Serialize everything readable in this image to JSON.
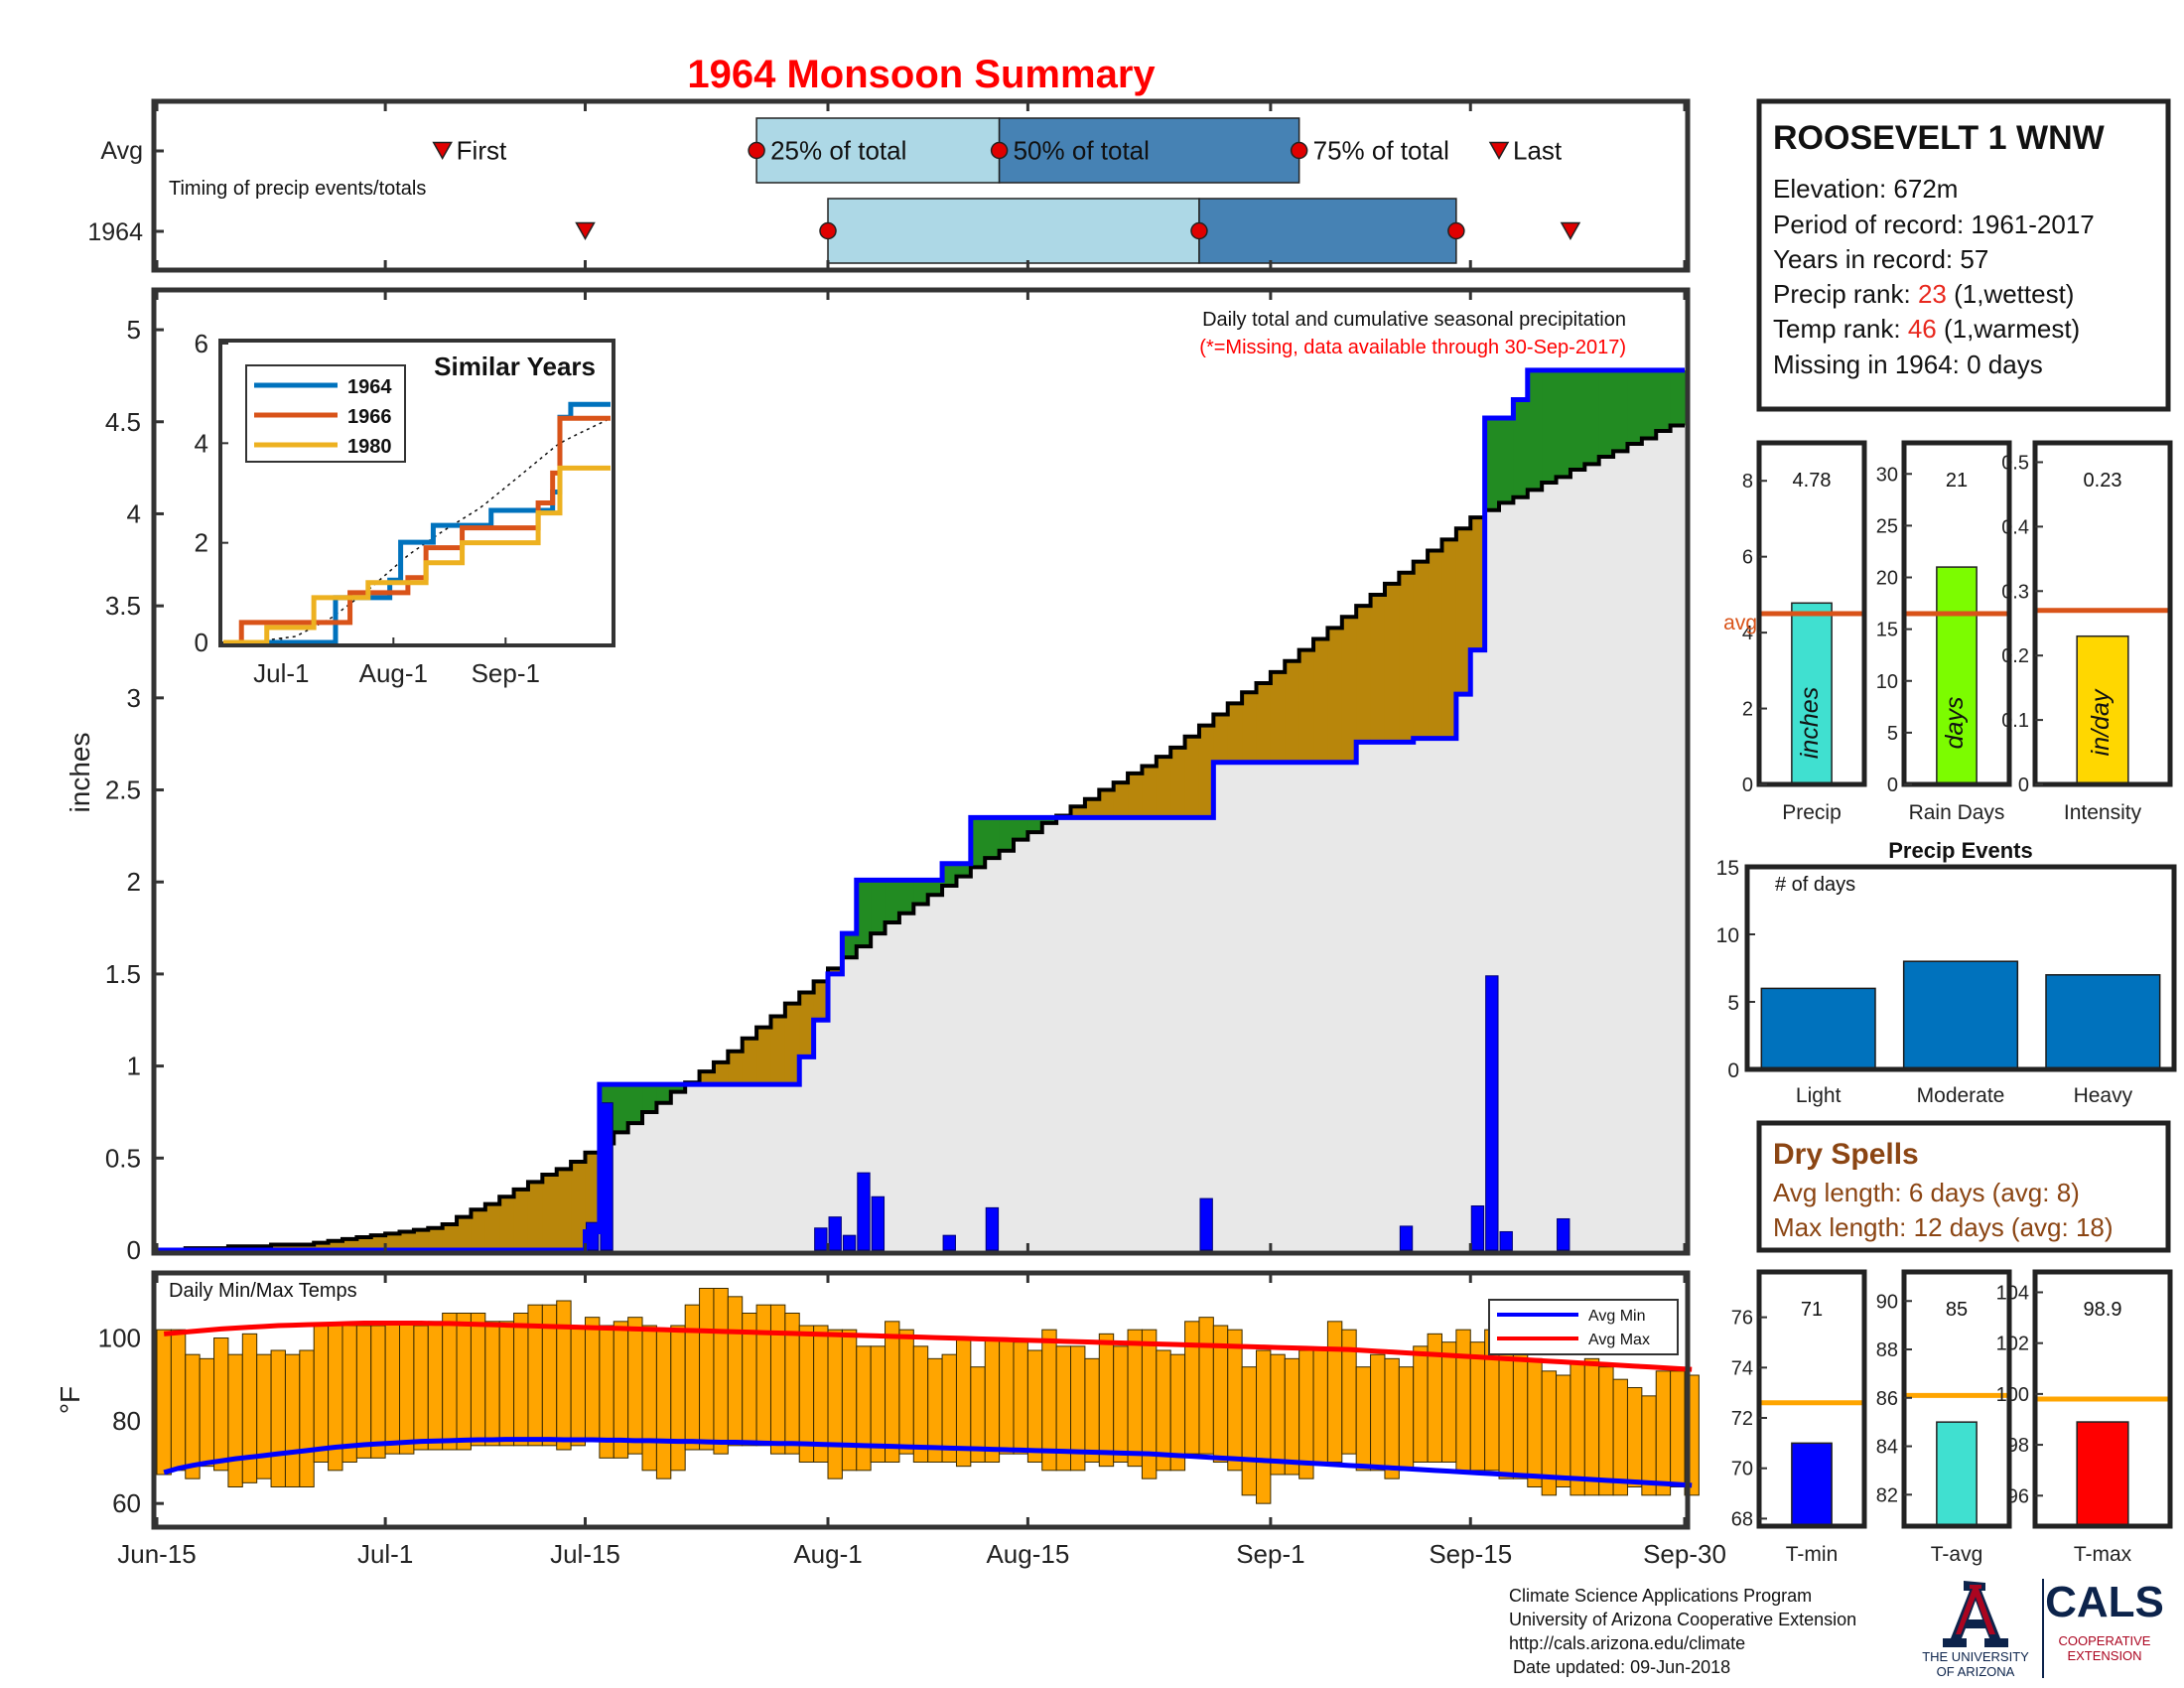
{
  "title": "1964 Monsoon Summary",
  "x_ticks": [
    "Jun-15",
    "Jul-1",
    "Jul-15",
    "Aug-1",
    "Aug-15",
    "Sep-1",
    "Sep-15",
    "Sep-30"
  ],
  "timing": {
    "row_labels": [
      "Avg",
      "1964"
    ],
    "caption": "Timing of precip events/totals",
    "labels": {
      "first": "First",
      "p25": "25% of total",
      "p50": "50% of total",
      "p75": "75% of total",
      "last": "Last"
    },
    "avg": {
      "first": "Jul-5",
      "p25": "Jul-27",
      "p50": "Aug-13",
      "p75": "Sep-3",
      "last": "Sep-17"
    },
    "year": {
      "first": "Jul-15",
      "p25": "Aug-1",
      "p50": "Aug-27",
      "p75": "Sep-14",
      "last": "Sep-22"
    }
  },
  "precip_panel": {
    "ylabel": "inches",
    "note": "Daily total and cumulative seasonal precipitation",
    "missing_note": "(*=Missing, data available through 30-Sep-2017)",
    "y_ticks": [
      "0",
      "0.5",
      "1",
      "1.5",
      "2",
      "2.5",
      "3",
      "3.5",
      "4",
      "4.5",
      "5"
    ]
  },
  "similar_years": {
    "title": "Similar Years",
    "x_ticks": [
      "Jul-1",
      "Aug-1",
      "Sep-1"
    ],
    "y_ticks": [
      "0",
      "2",
      "4",
      "6"
    ],
    "legend": [
      "1964",
      "1966",
      "1980"
    ]
  },
  "temp_panel": {
    "title": "Daily Min/Max Temps",
    "ylabel": "°F",
    "y_ticks": [
      "60",
      "80",
      "100"
    ],
    "legend": [
      "Avg Min",
      "Avg Max"
    ]
  },
  "station": {
    "name": "ROOSEVELT 1 WNW",
    "elevation": "Elevation: 672m",
    "period": "Period of record: 1961-2017",
    "years": "Years in record: 57",
    "precip_rank_label": "Precip rank: ",
    "precip_rank": "23",
    "precip_rank_note": " (1,wettest)",
    "temp_rank_label": "Temp rank: ",
    "temp_rank": "46",
    "temp_rank_note": " (1,warmest)",
    "missing": "Missing in 1964: 0 days"
  },
  "stat_bars": {
    "precip": {
      "value_label": "4.78",
      "unit": "inches",
      "xlabel": "Precip",
      "avg_label": "avg",
      "ticks": [
        "0",
        "2",
        "4",
        "6",
        "8"
      ]
    },
    "rain_days": {
      "value_label": "21",
      "unit": "days",
      "xlabel": "Rain Days",
      "ticks": [
        "0",
        "5",
        "10",
        "15",
        "20",
        "25",
        "30"
      ]
    },
    "intensity": {
      "value_label": "0.23",
      "unit": "in/day",
      "xlabel": "Intensity",
      "ticks": [
        "0",
        "0.1",
        "0.2",
        "0.3",
        "0.4",
        "0.5"
      ]
    }
  },
  "precip_events": {
    "title": "Precip Events",
    "ylabel": "# of days",
    "categories": [
      "Light",
      "Moderate",
      "Heavy"
    ],
    "ticks": [
      "0",
      "5",
      "10",
      "15"
    ]
  },
  "dry_spells": {
    "title": "Dry Spells",
    "avg_length": "Avg length: 6 days (avg: 8)",
    "max_length": "Max length: 12 days (avg: 18)"
  },
  "temp_bars": {
    "tmin": {
      "value_label": "71",
      "xlabel": "T-min",
      "ticks": [
        "68",
        "70",
        "72",
        "74",
        "76"
      ]
    },
    "tavg": {
      "value_label": "85",
      "xlabel": "T-avg",
      "ticks": [
        "82",
        "84",
        "86",
        "88",
        "90"
      ]
    },
    "tmax": {
      "value_label": "98.9",
      "xlabel": "T-max",
      "ticks": [
        "96",
        "98",
        "100",
        "102",
        "104"
      ]
    }
  },
  "footer": {
    "line1": "Climate Science Applications Program",
    "line2": "University of Arizona Cooperative Extension",
    "line3": "http://cals.arizona.edu/climate",
    "line4": "Date updated: 09-Jun-2018",
    "ua_logo_lines": [
      "THE UNIVERSITY",
      "OF ARIZONA"
    ],
    "cals_logo_lines": [
      "CALS",
      "COOPERATIVE",
      "EXTENSION"
    ]
  },
  "colors": {
    "title": "#ff0000",
    "rank": "#e8281e",
    "avg_line": "#d95319",
    "cumulative_year": "#0000ff",
    "cumulative_avg": "#000000",
    "above_avg_fill": "#228b22",
    "below_avg_fill": "#b8860b",
    "background_fill": "#e8e8e8",
    "daily_bar": "#0000ff",
    "temp_bar": "#ffa500",
    "avg_min": "#0000ff",
    "avg_max": "#ff0000",
    "timing_light": "#add8e6",
    "timing_dark": "#4682b4",
    "precip_bar": "#40e0d0",
    "rain_days_bar": "#7cfc00",
    "intensity_bar": "#ffd700",
    "events_bar": "#0072bd",
    "dry_spells": "#8b4513",
    "temp_avg_line": "#ffa500",
    "tmin_bar": "#0000ff",
    "tavg_bar": "#40e0d0",
    "tmax_bar": "#ff0000",
    "series_1964": "#0072bd",
    "series_1966": "#d95319",
    "series_1980": "#edb120",
    "ua_blue": "#0c234b",
    "ua_red": "#ab0520"
  },
  "chart_data": [
    {
      "type": "area",
      "title": "Daily total and cumulative seasonal precipitation",
      "ylabel": "inches",
      "xlim": [
        "Jun-15",
        "Sep-30"
      ],
      "ylim": [
        0,
        5.2
      ],
      "cumulative_1964": {
        "x": [
          "Jun-15",
          "Jul-14",
          "Jul-15",
          "Jul-16",
          "Jul-24",
          "Jul-30",
          "Jul-31",
          "Aug-1",
          "Aug-2",
          "Aug-3",
          "Aug-9",
          "Aug-11",
          "Aug-12",
          "Aug-27",
          "Aug-28",
          "Sep-7",
          "Sep-11",
          "Sep-14",
          "Sep-15",
          "Sep-16",
          "Sep-18",
          "Sep-19",
          "Sep-30"
        ],
        "y": [
          0,
          0,
          0.1,
          0.9,
          0.9,
          1.05,
          1.25,
          1.5,
          1.72,
          2.01,
          2.1,
          2.35,
          2.35,
          2.35,
          2.65,
          2.76,
          2.78,
          3.02,
          3.26,
          4.52,
          4.62,
          4.78,
          4.78
        ]
      },
      "cumulative_avg": {
        "x": [
          "Jun-15",
          "Jun-25",
          "Jul-5",
          "Jul-15",
          "Jul-25",
          "Aug-5",
          "Aug-15",
          "Aug-25",
          "Sep-5",
          "Sep-15",
          "Sep-16",
          "Sep-20",
          "Sep-30"
        ],
        "y": [
          0,
          0.03,
          0.12,
          0.5,
          1.05,
          1.75,
          2.25,
          2.7,
          3.35,
          3.95,
          4.0,
          4.15,
          4.5
        ]
      },
      "daily_1964": {
        "x": [
          "Jul-15",
          "Jul-16",
          "Jul-31",
          "Aug-1",
          "Aug-2",
          "Aug-3",
          "Aug-4",
          "Aug-9",
          "Aug-12",
          "Aug-27",
          "Sep-10",
          "Sep-15",
          "Sep-16",
          "Sep-17",
          "Sep-21"
        ],
        "y": [
          0.15,
          0.8,
          0.12,
          0.18,
          0.08,
          0.42,
          0.29,
          0.08,
          0.23,
          0.28,
          0.13,
          0.24,
          1.49,
          0.1,
          0.17
        ]
      }
    },
    {
      "type": "line",
      "title": "Similar Years",
      "ylim": [
        0,
        6
      ],
      "series": [
        {
          "name": "1964",
          "x": [
            "Jun-15",
            "Jul-15",
            "Jul-16",
            "Jul-31",
            "Aug-3",
            "Aug-12",
            "Aug-28",
            "Sep-14",
            "Sep-16",
            "Sep-19",
            "Sep-30"
          ],
          "y": [
            0,
            0,
            0.9,
            1.25,
            2.01,
            2.35,
            2.65,
            3.02,
            4.52,
            4.78,
            4.78
          ]
        },
        {
          "name": "1966",
          "x": [
            "Jun-15",
            "Jun-20",
            "Jul-5",
            "Jul-20",
            "Aug-5",
            "Aug-10",
            "Aug-20",
            "Sep-5",
            "Sep-10",
            "Sep-14",
            "Sep-16",
            "Sep-30"
          ],
          "y": [
            0,
            0.4,
            0.4,
            1.0,
            1.3,
            1.9,
            2.3,
            2.3,
            2.8,
            3.4,
            4.5,
            4.5
          ]
        },
        {
          "name": "1980",
          "x": [
            "Jun-15",
            "Jun-27",
            "Jul-10",
            "Jul-25",
            "Aug-10",
            "Aug-20",
            "Sep-1",
            "Sep-10",
            "Sep-16",
            "Sep-30"
          ],
          "y": [
            0,
            0.3,
            0.9,
            1.2,
            1.6,
            2.0,
            2.0,
            2.6,
            3.5,
            3.5
          ]
        }
      ]
    },
    {
      "type": "bar",
      "title": "Daily Min/Max Temps",
      "ylabel": "°F",
      "ylim": [
        55,
        115
      ],
      "x_start": "Jun-15",
      "x_end": "Sep-30",
      "tmin": [
        67,
        68,
        66,
        69,
        68,
        64,
        65,
        66,
        64,
        64,
        64,
        70,
        68,
        70,
        71,
        71,
        72,
        72,
        73,
        73,
        73,
        73,
        74,
        74,
        74,
        74,
        74,
        74,
        73,
        74,
        75,
        71,
        71,
        72,
        68,
        66,
        68,
        73,
        73,
        72,
        74,
        74,
        74,
        72,
        72,
        70,
        70,
        66,
        68,
        68,
        70,
        70,
        72,
        70,
        70,
        70,
        69,
        70,
        70,
        72,
        72,
        70,
        68,
        68,
        68,
        70,
        69,
        70,
        69,
        66,
        68,
        68,
        72,
        72,
        70,
        68,
        62,
        60,
        67,
        67,
        66,
        70,
        70,
        72,
        68,
        68,
        66,
        68,
        70,
        70,
        70,
        68,
        68,
        68,
        66,
        66,
        64,
        62,
        64,
        62,
        62,
        62,
        62,
        64,
        62,
        62,
        64,
        62
      ],
      "tmax": [
        102,
        102,
        96,
        95,
        100,
        96,
        101,
        96,
        97,
        96,
        97,
        103,
        103,
        103,
        103,
        103,
        104,
        104,
        103,
        104,
        106,
        106,
        106,
        104,
        104,
        106,
        108,
        108,
        109,
        103,
        105,
        103,
        104,
        105,
        103,
        102,
        103,
        108,
        112,
        112,
        110,
        106,
        108,
        108,
        106,
        103,
        103,
        102,
        102,
        98,
        98,
        104,
        102,
        98,
        95,
        96,
        100,
        93,
        100,
        100,
        99,
        97,
        102,
        98,
        98,
        95,
        101,
        98,
        102,
        102,
        97,
        96,
        104,
        105,
        103,
        102,
        93,
        97,
        96,
        95,
        97,
        97,
        104,
        102,
        93,
        96,
        95,
        93,
        98,
        101,
        99,
        102,
        99,
        102,
        106,
        100,
        95,
        92,
        91,
        94,
        95,
        93,
        90,
        88,
        86,
        92,
        92,
        91
      ],
      "avg_min": [
        67.5,
        68.5,
        69.2,
        69.8,
        70.3,
        70.8,
        71.2,
        71.6,
        72.0,
        72.4,
        72.8,
        73.2,
        73.6,
        73.9,
        74.2,
        74.4,
        74.6,
        74.8,
        75.0,
        75.1,
        75.2,
        75.3,
        75.4,
        75.4,
        75.5,
        75.5,
        75.5,
        75.5,
        75.4,
        75.4,
        75.4,
        75.3,
        75.3,
        75.2,
        75.2,
        75.1,
        75.0,
        75.0,
        74.9,
        74.8,
        74.8,
        74.7,
        74.6,
        74.5,
        74.5,
        74.4,
        74.3,
        74.2,
        74.1,
        74.0,
        73.9,
        73.8,
        73.7,
        73.6,
        73.5,
        73.4,
        73.3,
        73.2,
        73.1,
        73.0,
        72.9,
        72.8,
        72.7,
        72.6,
        72.5,
        72.4,
        72.3,
        72.2,
        72.1,
        72.0,
        71.8,
        71.6,
        71.4,
        71.2,
        71.0,
        70.8,
        70.6,
        70.4,
        70.2,
        70.0,
        69.8,
        69.6,
        69.4,
        69.2,
        69.0,
        68.8,
        68.6,
        68.4,
        68.2,
        68.0,
        67.8,
        67.6,
        67.4,
        67.2,
        67.0,
        66.8,
        66.6,
        66.4,
        66.2,
        66.0,
        65.8,
        65.6,
        65.4,
        65.2,
        65.0,
        64.8,
        64.6,
        64.4
      ],
      "avg_max": [
        101.0,
        101.3,
        101.6,
        101.9,
        102.2,
        102.4,
        102.6,
        102.8,
        103.0,
        103.1,
        103.2,
        103.3,
        103.4,
        103.5,
        103.6,
        103.6,
        103.6,
        103.6,
        103.6,
        103.5,
        103.5,
        103.4,
        103.3,
        103.2,
        103.1,
        103.0,
        102.9,
        102.8,
        102.7,
        102.6,
        102.5,
        102.4,
        102.3,
        102.2,
        102.1,
        102.0,
        101.9,
        101.8,
        101.7,
        101.6,
        101.5,
        101.4,
        101.3,
        101.2,
        101.1,
        101.0,
        100.9,
        100.8,
        100.7,
        100.6,
        100.5,
        100.4,
        100.3,
        100.2,
        100.1,
        100.0,
        99.9,
        99.8,
        99.7,
        99.6,
        99.5,
        99.4,
        99.3,
        99.2,
        99.1,
        99.0,
        98.9,
        98.8,
        98.7,
        98.6,
        98.5,
        98.4,
        98.3,
        98.2,
        98.1,
        98.0,
        97.9,
        97.8,
        97.7,
        97.6,
        97.5,
        97.4,
        97.3,
        97.2,
        97.0,
        96.8,
        96.6,
        96.4,
        96.2,
        96.0,
        95.8,
        95.6,
        95.4,
        95.2,
        95.0,
        94.8,
        94.6,
        94.4,
        94.2,
        94.0,
        93.8,
        93.6,
        93.4,
        93.2,
        93.0,
        92.8,
        92.6,
        92.4
      ]
    },
    {
      "type": "bar",
      "title": "Precip",
      "categories": [
        "Precip"
      ],
      "values": [
        4.78
      ],
      "avg": 4.5,
      "ylim": [
        0,
        9
      ]
    },
    {
      "type": "bar",
      "title": "Rain Days",
      "categories": [
        "Rain Days"
      ],
      "values": [
        21
      ],
      "avg": 16.5,
      "ylim": [
        0,
        33
      ]
    },
    {
      "type": "bar",
      "title": "Intensity",
      "categories": [
        "Intensity"
      ],
      "values": [
        0.23
      ],
      "avg": 0.27,
      "ylim": [
        0,
        0.53
      ]
    },
    {
      "type": "bar",
      "title": "Precip Events",
      "ylabel": "# of days",
      "categories": [
        "Light",
        "Moderate",
        "Heavy"
      ],
      "values": [
        6,
        8,
        7
      ],
      "ylim": [
        0,
        15
      ]
    },
    {
      "type": "bar",
      "title": "T-min",
      "categories": [
        "T-min"
      ],
      "values": [
        71
      ],
      "avg": 72.6,
      "ylim": [
        67.7,
        77.8
      ]
    },
    {
      "type": "bar",
      "title": "T-avg",
      "categories": [
        "T-avg"
      ],
      "values": [
        85
      ],
      "avg": 86.1,
      "ylim": [
        80.7,
        91.2
      ]
    },
    {
      "type": "bar",
      "title": "T-max",
      "categories": [
        "T-max"
      ],
      "values": [
        98.9
      ],
      "avg": 99.8,
      "ylim": [
        94.8,
        104.8
      ]
    }
  ]
}
